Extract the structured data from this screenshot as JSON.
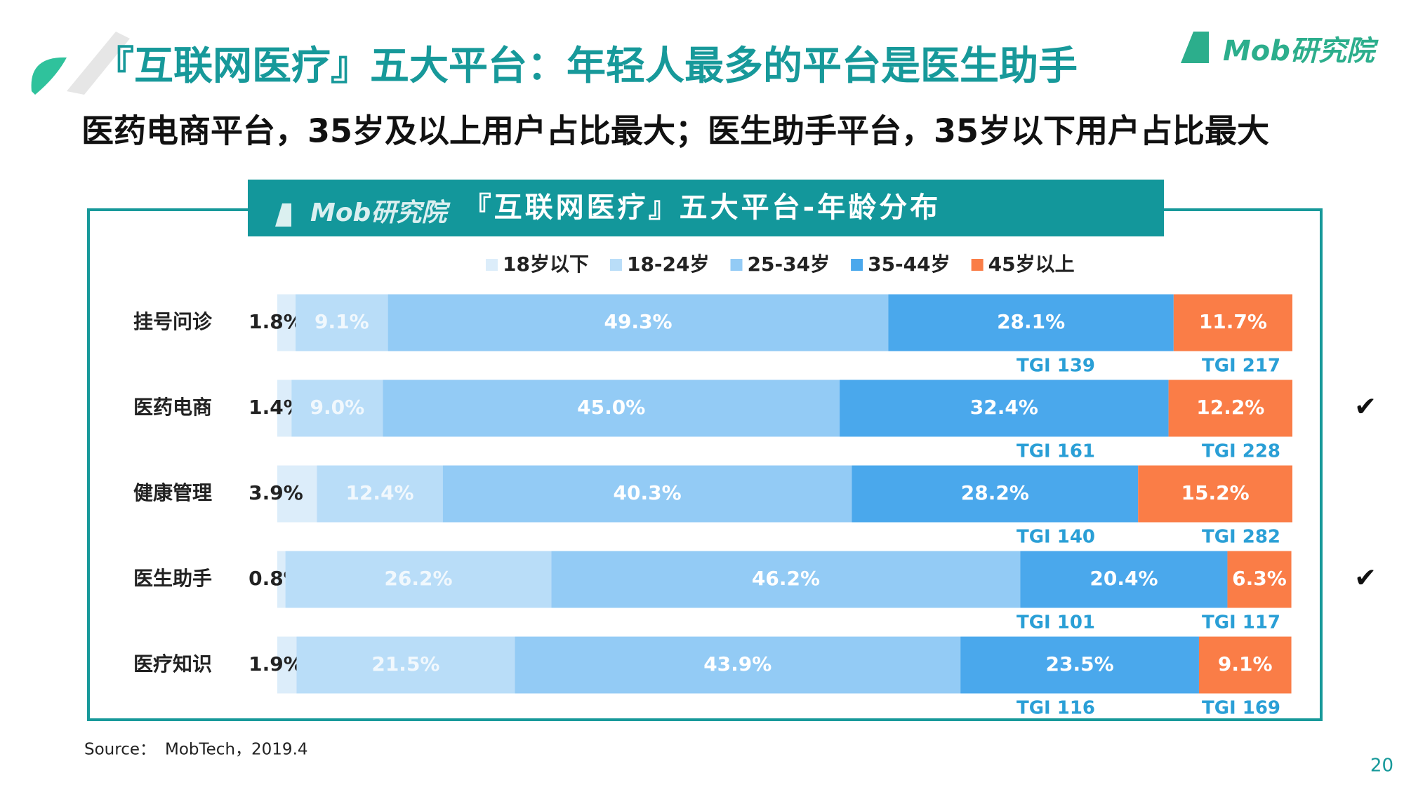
{
  "logo": "Mob研究院",
  "title": "『互联网医疗』五大平台：年轻人最多的平台是医生助手",
  "subtitle": "医药电商平台，35岁及以上用户占比最大；医生助手平台，35岁以下用户占比最大",
  "chart_data": {
    "type": "bar",
    "orientation": "horizontal",
    "stacked": true,
    "title": "『互联网医疗』五大平台-年龄分布",
    "categories": [
      "挂号问诊",
      "医药电商",
      "健康管理",
      "医生助手",
      "医疗知识"
    ],
    "xlim": [
      0,
      100
    ],
    "series": [
      {
        "name": "18岁以下",
        "color": "#dcedfa",
        "values": [
          1.8,
          1.4,
          3.9,
          0.8,
          1.9
        ],
        "value_labels": [
          "1.8%",
          "1.4%",
          "3.9%",
          "0.8%",
          "1.9%"
        ]
      },
      {
        "name": "18-24岁",
        "color": "#b9ddf8",
        "values": [
          9.1,
          9.0,
          12.4,
          26.2,
          21.5
        ],
        "value_labels": [
          "9.1%",
          "9.0%",
          "12.4%",
          "26.2%",
          "21.5%"
        ]
      },
      {
        "name": "25-34岁",
        "color": "#93cbf5",
        "values": [
          49.3,
          45.0,
          40.3,
          46.2,
          43.9
        ],
        "value_labels": [
          "49.3%",
          "45.0%",
          "40.3%",
          "46.2%",
          "43.9%"
        ]
      },
      {
        "name": "35-44岁",
        "color": "#4aa8ec",
        "values": [
          28.1,
          32.4,
          28.2,
          20.4,
          23.5
        ],
        "value_labels": [
          "28.1%",
          "32.4%",
          "28.2%",
          "20.4%",
          "23.5%"
        ],
        "tgi_labels": [
          "TGI 139",
          "TGI 161",
          "TGI 140",
          "TGI 101",
          "TGI 116"
        ]
      },
      {
        "name": "45岁以上",
        "color": "#fa7d47",
        "values": [
          11.7,
          12.2,
          15.2,
          6.3,
          9.1
        ],
        "value_labels": [
          "11.7%",
          "12.2%",
          "15.2%",
          "6.3%",
          "9.1%"
        ],
        "tgi_labels": [
          "TGI 217",
          "TGI 228",
          "TGI 282",
          "TGI 117",
          "TGI 169"
        ]
      }
    ],
    "row_checks": [
      null,
      "✔",
      null,
      "✔",
      null
    ]
  },
  "source": {
    "label": "Source：",
    "text": "MobTech，2019.4"
  },
  "page_number": "20"
}
